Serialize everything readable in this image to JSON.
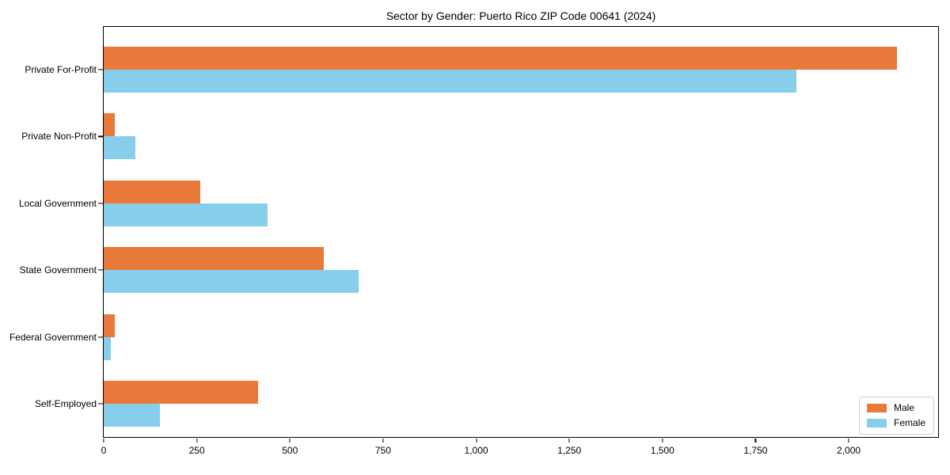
{
  "chart_data": {
    "type": "bar",
    "orientation": "horizontal",
    "title": "Sector by Gender: Puerto Rico ZIP Code 00641 (2024)",
    "categories": [
      "Private For-Profit",
      "Private Non-Profit",
      "Local Government",
      "State Government",
      "Federal Government",
      "Self-Employed"
    ],
    "series": [
      {
        "name": "Male",
        "color": "#E97A3C",
        "values": [
          2130,
          30,
          260,
          590,
          30,
          415
        ]
      },
      {
        "name": "Female",
        "color": "#87CEEB",
        "values": [
          1860,
          85,
          440,
          685,
          20,
          150
        ]
      }
    ],
    "xlabel": "",
    "ylabel": "",
    "xlim": [
      0,
      2240
    ],
    "xticks": [
      0,
      250,
      500,
      750,
      1000,
      1250,
      1500,
      1750,
      2000
    ],
    "xtick_labels": [
      "0",
      "250",
      "500",
      "750",
      "1,000",
      "1,250",
      "1,500",
      "1,750",
      "2,000"
    ],
    "grid": false,
    "legend": {
      "position": "lower right",
      "entries": [
        "Male",
        "Female"
      ]
    },
    "axis_color": "#000000",
    "background": "#ffffff"
  }
}
